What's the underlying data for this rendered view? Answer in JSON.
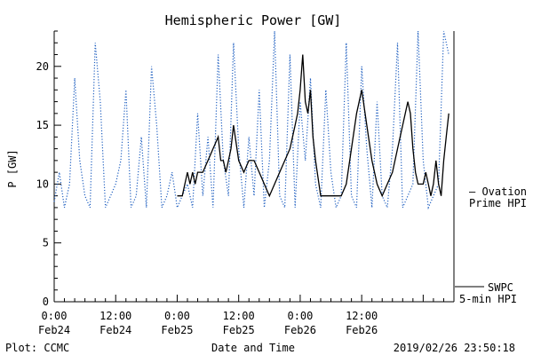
{
  "chart_data": {
    "type": "line",
    "title": "Hemispheric Power [GW]",
    "ylabel": "P [GW]",
    "xlabel": "Date and Time",
    "ylim": [
      0,
      23
    ],
    "xlim": [
      "2019-02-24 00:00",
      "2019-02-27 06:00"
    ],
    "y_ticks": [
      "0",
      "5",
      "10",
      "15",
      "20"
    ],
    "x_ticks": [
      {
        "time": "0:00",
        "date": "Feb24"
      },
      {
        "time": "12:00",
        "date": "Feb24"
      },
      {
        "time": "0:00",
        "date": "Feb25"
      },
      {
        "time": "12:00",
        "date": "Feb25"
      },
      {
        "time": "0:00",
        "date": "Feb26"
      },
      {
        "time": "12:00",
        "date": "Feb26"
      }
    ],
    "series": [
      {
        "name": "— Ovation Prime HPI",
        "style": "dotted",
        "color": "#1f5fc0",
        "x": [
          "2019-02-24 00:00",
          "2019-02-24 01:00",
          "2019-02-24 02:00",
          "2019-02-24 03:00",
          "2019-02-24 04:00",
          "2019-02-24 05:00",
          "2019-02-24 06:00",
          "2019-02-24 07:00",
          "2019-02-24 08:00",
          "2019-02-24 09:00",
          "2019-02-24 10:00",
          "2019-02-24 11:00",
          "2019-02-24 12:00",
          "2019-02-24 13:00",
          "2019-02-24 14:00",
          "2019-02-24 15:00",
          "2019-02-24 16:00",
          "2019-02-24 17:00",
          "2019-02-24 18:00",
          "2019-02-24 19:00",
          "2019-02-24 20:00",
          "2019-02-24 21:00",
          "2019-02-24 22:00",
          "2019-02-24 23:00",
          "2019-02-25 00:00",
          "2019-02-25 01:00",
          "2019-02-25 02:00",
          "2019-02-25 03:00",
          "2019-02-25 04:00",
          "2019-02-25 05:00",
          "2019-02-25 06:00",
          "2019-02-25 07:00",
          "2019-02-25 08:00",
          "2019-02-25 09:00",
          "2019-02-25 10:00",
          "2019-02-25 11:00",
          "2019-02-25 12:00",
          "2019-02-25 13:00",
          "2019-02-25 14:00",
          "2019-02-25 15:00",
          "2019-02-25 16:00",
          "2019-02-25 17:00",
          "2019-02-25 18:00",
          "2019-02-25 19:00",
          "2019-02-25 20:00",
          "2019-02-25 21:00",
          "2019-02-25 22:00",
          "2019-02-25 23:00",
          "2019-02-26 00:00",
          "2019-02-26 01:00",
          "2019-02-26 02:00",
          "2019-02-26 03:00",
          "2019-02-26 04:00",
          "2019-02-26 05:00",
          "2019-02-26 06:00",
          "2019-02-26 07:00",
          "2019-02-26 08:00",
          "2019-02-26 09:00",
          "2019-02-26 10:00",
          "2019-02-26 11:00",
          "2019-02-26 12:00",
          "2019-02-26 13:00",
          "2019-02-26 14:00",
          "2019-02-26 15:00",
          "2019-02-26 16:00",
          "2019-02-26 17:00",
          "2019-02-26 18:00",
          "2019-02-26 19:00",
          "2019-02-26 20:00",
          "2019-02-26 21:00",
          "2019-02-26 22:00",
          "2019-02-26 23:00",
          "2019-02-27 00:00",
          "2019-02-27 01:00",
          "2019-02-27 02:00",
          "2019-02-27 03:00",
          "2019-02-27 04:00",
          "2019-02-27 05:00"
        ],
        "values": [
          8.5,
          11,
          8,
          10,
          19,
          12,
          9,
          8,
          22,
          17,
          8,
          9,
          10,
          12,
          18,
          8,
          9,
          14,
          8,
          20,
          15,
          8,
          9,
          11,
          8,
          9,
          10,
          8,
          16,
          9,
          14,
          8,
          21,
          12,
          9,
          22,
          13,
          8,
          14,
          9,
          18,
          8,
          12,
          23,
          9,
          8,
          21,
          8,
          17,
          12,
          19,
          10,
          8,
          18,
          11,
          8,
          9,
          22,
          9,
          8,
          20,
          13,
          8,
          17,
          9,
          8,
          13,
          22,
          8,
          9,
          10,
          23,
          12,
          8,
          9,
          10,
          23,
          21
        ]
      },
      {
        "name": "SWPC 5-min HPI",
        "style": "solid",
        "color": "#000000",
        "x": [
          "2019-02-25 00:00",
          "2019-02-25 01:00",
          "2019-02-25 01:30",
          "2019-02-25 02:00",
          "2019-02-25 02:30",
          "2019-02-25 03:00",
          "2019-02-25 03:30",
          "2019-02-25 04:00",
          "2019-02-25 05:00",
          "2019-02-25 06:00",
          "2019-02-25 07:00",
          "2019-02-25 08:00",
          "2019-02-25 08:30",
          "2019-02-25 09:00",
          "2019-02-25 09:30",
          "2019-02-25 10:00",
          "2019-02-25 10:30",
          "2019-02-25 11:00",
          "2019-02-25 12:00",
          "2019-02-25 13:00",
          "2019-02-25 14:00",
          "2019-02-25 15:00",
          "2019-02-25 16:00",
          "2019-02-25 17:00",
          "2019-02-25 18:00",
          "2019-02-25 19:00",
          "2019-02-25 20:00",
          "2019-02-25 21:00",
          "2019-02-25 22:00",
          "2019-02-25 22:30",
          "2019-02-25 23:00",
          "2019-02-25 23:30",
          "2019-02-26 00:00",
          "2019-02-26 00:30",
          "2019-02-26 01:00",
          "2019-02-26 01:30",
          "2019-02-26 02:00",
          "2019-02-26 02:30",
          "2019-02-26 03:00",
          "2019-02-26 04:00",
          "2019-02-26 05:00",
          "2019-02-26 06:00",
          "2019-02-26 07:00",
          "2019-02-26 08:00",
          "2019-02-26 09:00",
          "2019-02-26 10:00",
          "2019-02-26 11:00",
          "2019-02-26 12:00",
          "2019-02-26 13:00",
          "2019-02-26 14:00",
          "2019-02-26 15:00",
          "2019-02-26 16:00",
          "2019-02-26 17:00",
          "2019-02-26 18:00",
          "2019-02-26 19:00",
          "2019-02-26 20:00",
          "2019-02-26 21:00",
          "2019-02-26 21:30",
          "2019-02-26 22:00",
          "2019-02-26 22:30",
          "2019-02-26 23:00",
          "2019-02-26 23:30",
          "2019-02-27 00:00",
          "2019-02-27 00:30",
          "2019-02-27 01:00",
          "2019-02-27 01:30",
          "2019-02-27 02:00",
          "2019-02-27 02:30",
          "2019-02-27 03:00",
          "2019-02-27 03:30",
          "2019-02-27 04:00",
          "2019-02-27 04:30",
          "2019-02-27 05:00"
        ],
        "values": [
          9,
          9,
          10,
          11,
          10,
          11,
          10,
          11,
          11,
          12,
          13,
          14,
          12,
          12,
          11,
          12,
          13,
          15,
          12,
          11,
          12,
          12,
          11,
          10,
          9,
          10,
          11,
          12,
          13,
          14,
          15,
          16,
          18,
          21,
          17,
          16,
          18,
          14,
          12,
          9,
          9,
          9,
          9,
          9,
          10,
          13,
          16,
          18,
          15,
          12,
          10,
          9,
          10,
          11,
          13,
          15,
          17,
          16,
          13,
          11,
          10,
          10,
          10,
          11,
          10,
          9,
          10,
          12,
          10,
          9,
          12,
          14,
          16
        ]
      }
    ],
    "legend": [
      {
        "line1": "— Ovation",
        "line2": "Prime HPI",
        "color": "#1f5fc0",
        "placement": "right"
      },
      {
        "line1": "SWPC",
        "line2": "5-min HPI",
        "color": "#000000",
        "placement": "right-bottom"
      }
    ]
  },
  "footer": {
    "left": "Plot: CCMC",
    "right": "2019/02/26 23:50:18"
  }
}
